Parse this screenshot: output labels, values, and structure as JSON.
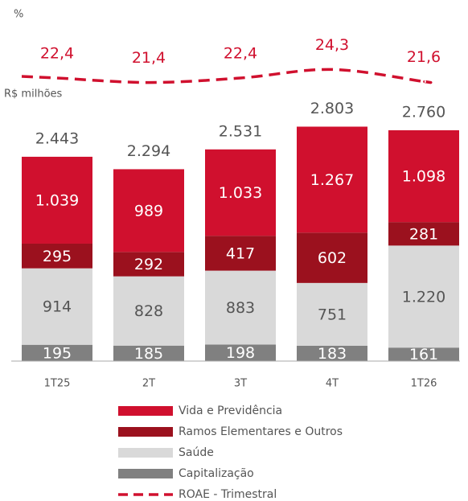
{
  "chart_data": {
    "type": "bar",
    "stacked": true,
    "unit_label": "%",
    "axis_label": "R$ milhões",
    "categories": [
      "1T25",
      "2T",
      "3T",
      "4T",
      "1T26"
    ],
    "series": [
      {
        "name": "Vida e Previdência",
        "color": "#d0102e",
        "label_color": "#ffffff",
        "values": [
          1039,
          989,
          1033,
          1267,
          1098
        ],
        "value_labels": [
          "1.039",
          "989",
          "1.033",
          "1.267",
          "1.098"
        ]
      },
      {
        "name": "Ramos Elementares e Outros",
        "color": "#9b111e",
        "label_color": "#ffffff",
        "values": [
          295,
          292,
          417,
          602,
          281
        ]
      },
      {
        "name": "Saúde",
        "color": "#d9d9d9",
        "label_color": "#555555",
        "values": [
          914,
          828,
          883,
          751,
          1220
        ],
        "value_labels": [
          "914",
          "828",
          "883",
          "751",
          "1.220"
        ]
      },
      {
        "name": "Capitalização",
        "color": "#808080",
        "label_color": "#ffffff",
        "values": [
          195,
          185,
          198,
          183,
          161
        ]
      }
    ],
    "totals": {
      "values": [
        2443,
        2294,
        2531,
        2803,
        2760
      ],
      "value_labels": [
        "2.443",
        "2.294",
        "2.531",
        "2.803",
        "2.760"
      ]
    },
    "line": {
      "name": "ROAE - Trimestral",
      "color": "#d0102e",
      "values": [
        22.4,
        21.4,
        22.4,
        24.3,
        21.6
      ],
      "value_labels": [
        "22,4",
        "21,4",
        "22,4",
        "24,3",
        "21,6"
      ]
    }
  }
}
